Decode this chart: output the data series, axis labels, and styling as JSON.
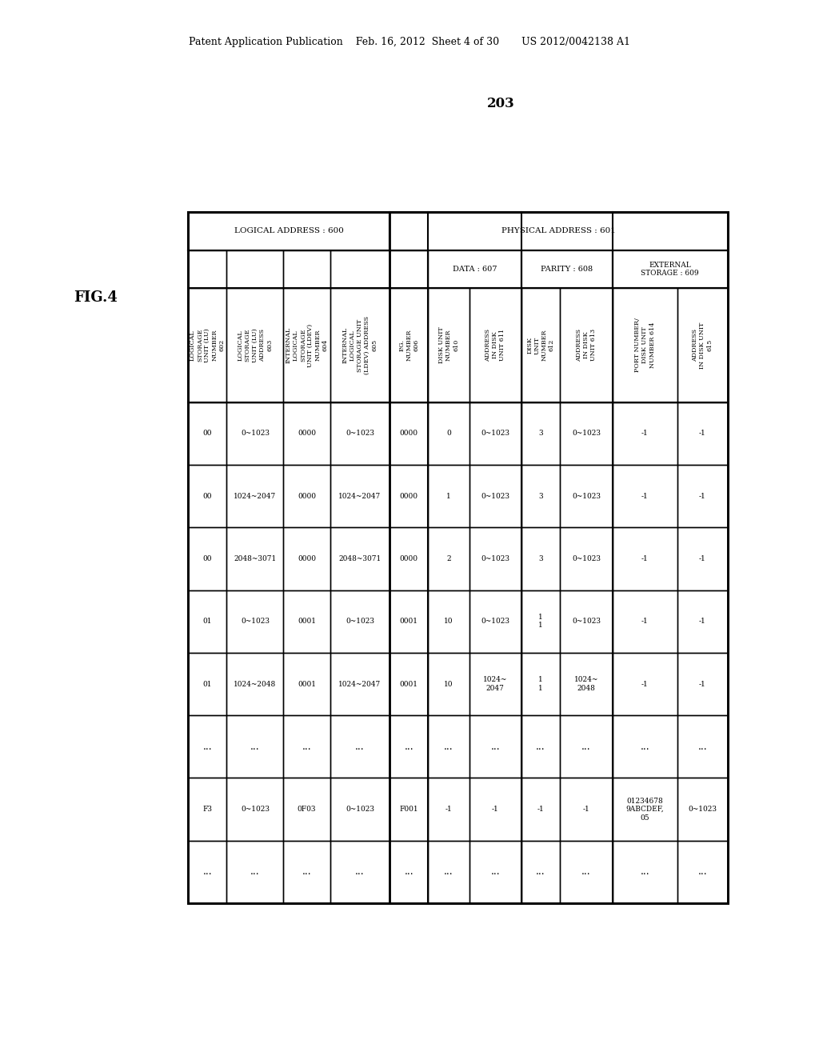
{
  "header_text": "Patent Application Publication    Feb. 16, 2012  Sheet 4 of 30       US 2012/0042138 A1",
  "fig_label": "FIG.4",
  "fig_number": "203",
  "background_color": "#ffffff",
  "logical_address_label": "LOGICAL ADDRESS : 600",
  "physical_address_label": "PHYSICAL ADDRESS : 601",
  "col_headers": [
    "LOGICAL\nSTORAGE\nUNIT (LU)\nNUMBER\n602",
    "LOGICAL\nSTORAGE\nUNIT (LU)\nADDRESS\n603",
    "INTERNAL\nLOGICAL\nSTORAGE\nUNIT (LDEV)\nNUMBER\n604",
    "INTERNAL\nLOGICAL\nSTORAGE UNIT\n(LDEV) ADDRESS\n605",
    "P.G.\nNUMBER\n606",
    "DISK UNIT\nNUMBER\n610",
    "ADDRESS\nIN DISK\nUNIT 611",
    "DISK\nUNIT\nNUMBER\n612",
    "ADDRESS\nIN DISK\nUNIT 613",
    "PORT NUMBER/\nDISK UNIT\nNUMBER 614",
    "ADDRESS\nIN DISK UNIT\n615"
  ],
  "rows": [
    [
      "00",
      "0~1023",
      "0000",
      "0~1023",
      "0000",
      "0",
      "0~1023",
      "3",
      "0~1023",
      "-1",
      "-1"
    ],
    [
      "00",
      "1024~2047",
      "0000",
      "1024~2047",
      "0000",
      "1",
      "0~1023",
      "3",
      "0~1023",
      "-1",
      "-1"
    ],
    [
      "00",
      "2048~3071",
      "0000",
      "2048~3071",
      "0000",
      "2",
      "0~1023",
      "3",
      "0~1023",
      "-1",
      "-1"
    ],
    [
      "01",
      "0~1023",
      "0001",
      "0~1023",
      "0001",
      "10",
      "0~1023",
      "1\n1",
      "0~1023",
      "-1",
      "-1"
    ],
    [
      "01",
      "1024~2048",
      "0001",
      "1024~2047",
      "0001",
      "10",
      "1024~\n2047",
      "1\n1",
      "1024~\n2048",
      "-1",
      "-1"
    ],
    [
      "...",
      "...",
      "...",
      "...",
      "...",
      "...",
      "...",
      "...",
      "...",
      "...",
      "..."
    ],
    [
      "F3",
      "0~1023",
      "0F03",
      "0~1023",
      "F001",
      "-1",
      "-1",
      "-1",
      "-1",
      "01234678\n9ABCDEF,\n05",
      "0~1023"
    ],
    [
      "...",
      "...",
      "...",
      "...",
      "...",
      "...",
      "...",
      "...",
      "...",
      "...",
      "..."
    ]
  ]
}
